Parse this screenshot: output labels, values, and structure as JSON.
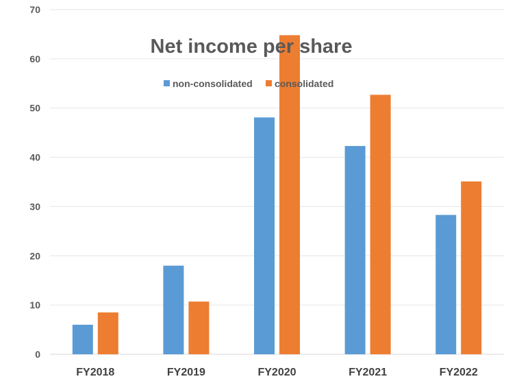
{
  "chart_data": {
    "type": "bar",
    "title": "Net income per share",
    "xlabel": "",
    "ylabel": "",
    "categories": [
      "FY2018",
      "FY2019",
      "FY2020",
      "FY2021",
      "FY2022"
    ],
    "series": [
      {
        "name": "non-consolidated",
        "color": "#5B9BD5",
        "values": [
          6.0,
          18.0,
          48.1,
          42.3,
          28.3
        ]
      },
      {
        "name": "consolidated",
        "color": "#ED7D31",
        "values": [
          8.5,
          10.7,
          64.8,
          52.7,
          35.1
        ]
      }
    ],
    "ylim": [
      0,
      70
    ],
    "yticks": [
      0,
      10,
      20,
      30,
      40,
      50,
      60,
      70
    ],
    "grid": true,
    "legend_position": "top"
  }
}
